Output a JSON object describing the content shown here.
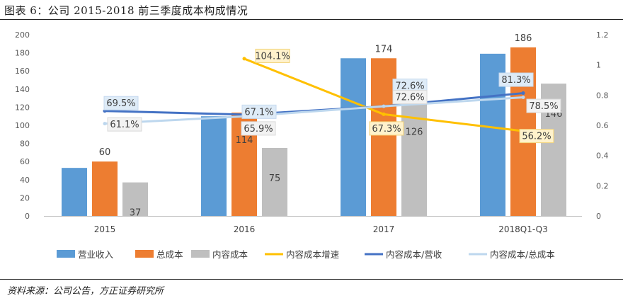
{
  "header": {
    "title": "图表 6：公司 2015-2018 前三季度成本构成情况"
  },
  "footer": {
    "source": "资料来源：公司公告，方正证券研究所"
  },
  "colors": {
    "revenue": "#5B9BD5",
    "total_cost": "#ED7D31",
    "content_cost": "#BFBFBF",
    "growth": "#FFC000",
    "content_rev": "#4472C4",
    "content_total": "#BDD7EE",
    "label_box": "#FFF2CC"
  },
  "chart_data": {
    "type": "bar",
    "title": "图表 6：公司 2015-2018 前三季度成本构成情况",
    "categories": [
      "2015",
      "2016",
      "2017",
      "2018Q1-Q3"
    ],
    "ylim": [
      0,
      200
    ],
    "yticks": [
      "0",
      "20",
      "40",
      "60",
      "80",
      "100",
      "120",
      "140",
      "160",
      "180",
      "200"
    ],
    "y2lim": [
      0,
      1.2
    ],
    "y2ticks": [
      "0",
      "0.2",
      "0.4",
      "0.6",
      "0.8",
      "1",
      "1.2"
    ],
    "series": [
      {
        "name": "营业收入",
        "kind": "bar",
        "axis": "left",
        "values": [
          53,
          110,
          174,
          179
        ],
        "labels": [
          "",
          "",
          "",
          ""
        ]
      },
      {
        "name": "总成本",
        "kind": "bar",
        "axis": "left",
        "values": [
          60,
          114,
          174,
          186
        ],
        "labels": [
          "60",
          "114",
          "174",
          "186"
        ]
      },
      {
        "name": "内容成本",
        "kind": "bar",
        "axis": "left",
        "values": [
          37,
          75,
          126,
          146
        ],
        "labels": [
          "37",
          "75",
          "126",
          "146"
        ]
      },
      {
        "name": "内容成本增速",
        "kind": "line",
        "axis": "right",
        "values": [
          null,
          1.041,
          0.673,
          0.562
        ],
        "labels": [
          "",
          "104.1%",
          "67.3%",
          "56.2%"
        ]
      },
      {
        "name": "内容成本/营收",
        "kind": "line",
        "axis": "right",
        "values": [
          0.695,
          0.671,
          0.726,
          0.813
        ],
        "labels": [
          "69.5%",
          "67.1%",
          "72.6%",
          "81.3%"
        ]
      },
      {
        "name": "内容成本/总成本",
        "kind": "line",
        "axis": "right",
        "values": [
          0.611,
          0.659,
          0.726,
          0.785
        ],
        "labels": [
          "61.1%",
          "65.9%",
          "72.6%",
          "78.5%"
        ]
      }
    ],
    "legend_position": "bottom"
  }
}
